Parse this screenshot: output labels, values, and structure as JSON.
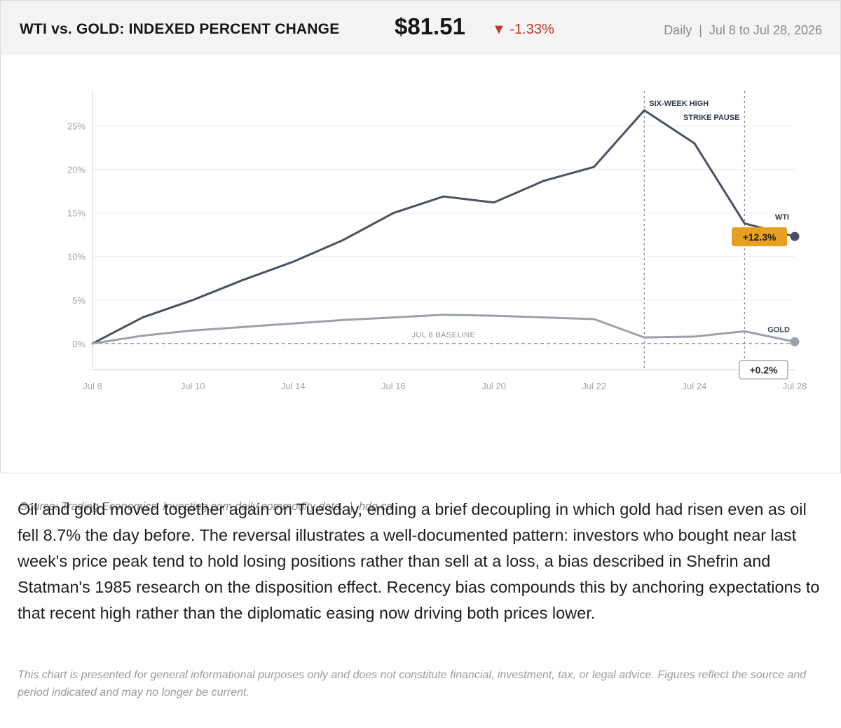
{
  "header": {
    "title": "WTI vs. GOLD: INDEXED PERCENT CHANGE",
    "price": "$81.51",
    "change_arrow": "▼",
    "change": "-1.33%",
    "period": "Daily  |  Jul 8 to Jul 28, 2026"
  },
  "chart_data": {
    "type": "line",
    "title": "",
    "xlabel": "",
    "ylabel": "",
    "x_tick_labels": [
      "Jul 8",
      "Jul 10",
      "Jul 14",
      "Jul 16",
      "Jul 20",
      "Jul 22",
      "Jul 24",
      "Jul 28"
    ],
    "y_tick_labels": [
      "0%",
      "5%",
      "10%",
      "15%",
      "20%",
      "25%"
    ],
    "y_ticks": [
      0,
      5,
      10,
      15,
      20,
      25
    ],
    "ylim": [
      -3,
      29
    ],
    "point_count": 15,
    "series": [
      {
        "name": "WTI",
        "color": "#4a5262",
        "values": [
          0,
          3.0,
          5.0,
          7.3,
          9.4,
          11.9,
          15.0,
          16.9,
          16.2,
          18.7,
          20.3,
          26.8,
          23.0,
          13.8,
          12.3
        ],
        "end_label": "+12.3%",
        "end_label_color": "#e8a020"
      },
      {
        "name": "GOLD",
        "color": "#9ba1aa",
        "values": [
          0,
          0.9,
          1.5,
          1.9,
          2.3,
          2.7,
          3.0,
          3.3,
          3.2,
          3.0,
          2.8,
          0.7,
          0.8,
          1.4,
          0.2
        ],
        "end_label": "+0.2%",
        "end_label_color": "#ffffff"
      }
    ],
    "baseline": {
      "value": 0,
      "label": "JUL 8 BASELINE"
    },
    "annotations": [
      {
        "index": 11,
        "label": "SIX-WEEK HIGH"
      },
      {
        "index": 13,
        "label": "STRIKE PAUSE"
      }
    ],
    "grid": true
  },
  "source": "Source: Trading Economics, Investing.com daily commodity data.  |  hdq.ca",
  "body_text": "Oil and gold moved together again on Tuesday, ending a brief decoupling in which gold had risen even as oil fell 8.7% the day before. The reversal illustrates a well-documented pattern: investors who bought near last week's price peak tend to hold losing positions rather than sell at a loss, a bias described in Shefrin and Statman's 1985 research on the disposition effect. Recency bias compounds this by anchoring expectations to that recent high rather than the diplomatic easing now driving both prices lower.",
  "disclaimer": "This chart is presented for general informational purposes only and does not constitute financial, investment, tax, or legal advice. Figures reflect the source and period indicated and may no longer be current."
}
